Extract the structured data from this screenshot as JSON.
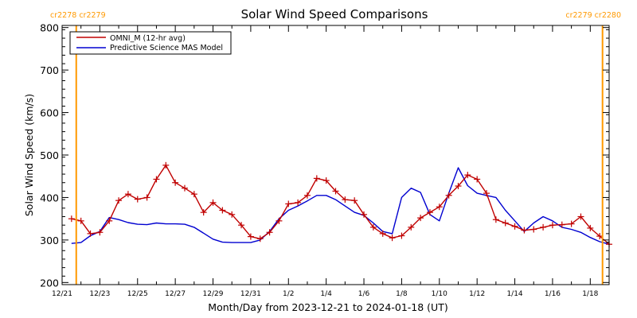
{
  "chart_data": {
    "type": "line",
    "title": "Solar Wind Speed Comparisons",
    "xlabel": "Month/Day from 2023-12-21 to 2024-01-18 (UT)",
    "ylabel": "Solar Wind Speed (km/s)",
    "x_range_days": [
      0,
      29
    ],
    "ylim": [
      195,
      805
    ],
    "y_ticks": [
      200,
      300,
      400,
      500,
      600,
      700,
      800
    ],
    "x_tick_labels": [
      {
        "day": 0,
        "label": "12/21"
      },
      {
        "day": 2,
        "label": "12/23"
      },
      {
        "day": 4,
        "label": "12/25"
      },
      {
        "day": 6,
        "label": "12/27"
      },
      {
        "day": 8,
        "label": "12/29"
      },
      {
        "day": 10,
        "label": "12/31"
      },
      {
        "day": 12,
        "label": "1/2"
      },
      {
        "day": 14,
        "label": "1/4"
      },
      {
        "day": 16,
        "label": "1/6"
      },
      {
        "day": 18,
        "label": "1/8"
      },
      {
        "day": 20,
        "label": "1/10"
      },
      {
        "day": 22,
        "label": "1/12"
      },
      {
        "day": 24,
        "label": "1/14"
      },
      {
        "day": 26,
        "label": "1/16"
      },
      {
        "day": 28,
        "label": "1/18"
      }
    ],
    "legend_position": "top-left",
    "colors": {
      "omni": "#c00000",
      "model": "#0000d0",
      "carrington": "#ff9900",
      "axis": "#000000"
    },
    "carrington_markers": [
      {
        "day": 0.75,
        "label": "cr2278 cr2279",
        "align": "left"
      },
      {
        "day": 28.65,
        "label": "cr2279 cr2280",
        "align": "right"
      }
    ],
    "series": [
      {
        "name": "OMNI_M (12-hr avg)",
        "style": "line+markers",
        "x": [
          0.5,
          1.0,
          1.5,
          2.0,
          2.5,
          3.0,
          3.5,
          4.0,
          4.5,
          5.0,
          5.5,
          6.0,
          6.5,
          7.0,
          7.5,
          8.0,
          8.5,
          9.0,
          9.5,
          10.0,
          10.5,
          11.0,
          11.5,
          12.0,
          12.5,
          13.0,
          13.5,
          14.0,
          14.5,
          15.0,
          15.5,
          16.0,
          16.5,
          17.0,
          17.5,
          18.0,
          18.5,
          19.0,
          19.5,
          20.0,
          20.5,
          21.0,
          21.5,
          22.0,
          22.5,
          23.0,
          23.5,
          24.0,
          24.5,
          25.0,
          25.5,
          26.0,
          26.5,
          27.0,
          27.5,
          28.0,
          28.5,
          29.0
        ],
        "values": [
          350,
          345,
          315,
          318,
          345,
          393,
          408,
          396,
          400,
          443,
          476,
          435,
          422,
          408,
          365,
          388,
          370,
          360,
          335,
          308,
          303,
          318,
          345,
          385,
          388,
          405,
          445,
          440,
          415,
          395,
          393,
          360,
          330,
          315,
          305,
          310,
          330,
          352,
          365,
          378,
          405,
          427,
          453,
          443,
          410,
          348,
          340,
          332,
          323,
          325,
          330,
          335,
          336,
          338,
          355,
          328,
          309,
          290
        ]
      },
      {
        "name": "Predictive Science MAS Model",
        "style": "line",
        "x": [
          0.5,
          1.0,
          1.5,
          2.0,
          2.5,
          3.0,
          3.5,
          4.0,
          4.5,
          5.0,
          5.5,
          6.0,
          6.5,
          7.0,
          7.5,
          8.0,
          8.5,
          9.0,
          9.5,
          10.0,
          10.5,
          11.0,
          11.5,
          12.0,
          12.5,
          13.0,
          13.5,
          14.0,
          14.5,
          15.0,
          15.5,
          16.0,
          16.5,
          17.0,
          17.5,
          18.0,
          18.5,
          19.0,
          19.5,
          20.0,
          20.5,
          21.0,
          21.5,
          22.0,
          22.5,
          23.0,
          23.5,
          24.0,
          24.5,
          25.0,
          25.5,
          26.0,
          26.5,
          27.0,
          27.5,
          28.0,
          28.5,
          29.0
        ],
        "values": [
          292,
          294,
          310,
          320,
          353,
          348,
          341,
          337,
          336,
          340,
          338,
          338,
          337,
          330,
          316,
          302,
          295,
          294,
          294,
          294,
          300,
          320,
          350,
          370,
          380,
          392,
          405,
          405,
          395,
          380,
          365,
          358,
          340,
          320,
          315,
          400,
          422,
          412,
          360,
          345,
          410,
          470,
          428,
          410,
          405,
          400,
          370,
          345,
          320,
          340,
          355,
          345,
          330,
          325,
          318,
          306,
          296,
          290
        ]
      }
    ]
  }
}
